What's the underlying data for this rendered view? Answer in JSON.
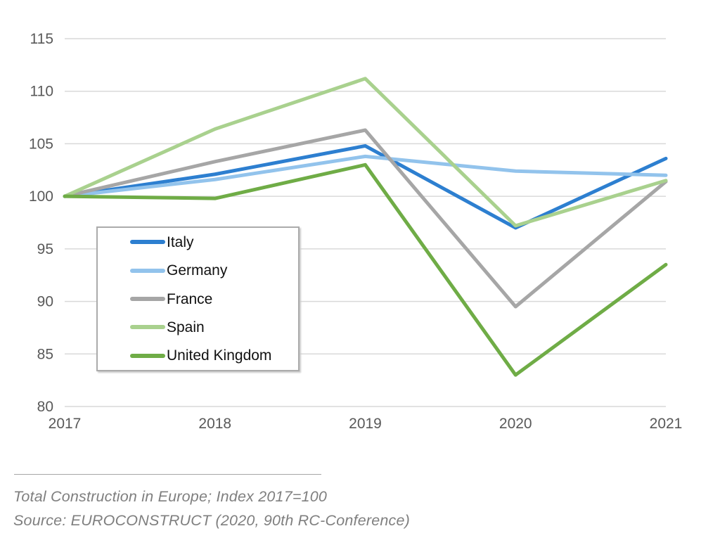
{
  "chart_data": {
    "type": "line",
    "title": "",
    "xlabel": "",
    "ylabel": "",
    "categories": [
      "2017",
      "2018",
      "2019",
      "2020",
      "2021"
    ],
    "series": [
      {
        "name": "Italy",
        "color": "#2D7FD0",
        "values": [
          100,
          102.1,
          104.8,
          97.0,
          103.6
        ]
      },
      {
        "name": "Germany",
        "color": "#92C3EC",
        "values": [
          100,
          101.6,
          103.8,
          102.4,
          102.0
        ]
      },
      {
        "name": "France",
        "color": "#A6A6A6",
        "values": [
          100,
          103.3,
          106.3,
          89.5,
          101.4
        ]
      },
      {
        "name": "Spain",
        "color": "#A9D18E",
        "values": [
          100,
          106.4,
          111.2,
          97.2,
          101.5
        ]
      },
      {
        "name": "United Kingdom",
        "color": "#6FAC46",
        "values": [
          100,
          99.8,
          103.0,
          83.0,
          93.5
        ]
      }
    ],
    "ylim": [
      80,
      115
    ],
    "ytick_step": 5,
    "yticks": [
      80,
      85,
      90,
      95,
      100,
      105,
      110,
      115
    ],
    "grid": true,
    "legend_position": "inside-left",
    "line_width": 5
  },
  "footer": {
    "caption_line1": "Total Construction in Europe; Index 2017=100",
    "caption_line2": "Source: EUROCONSTRUCT (2020, 90th RC-Conference)"
  },
  "colors": {
    "grid": "#D9D9D9",
    "axis_text": "#595959",
    "legend_text": "#111111",
    "legend_border": "#ABABAB",
    "footer_text": "#7F7F7F",
    "background": "#FFFFFF"
  }
}
